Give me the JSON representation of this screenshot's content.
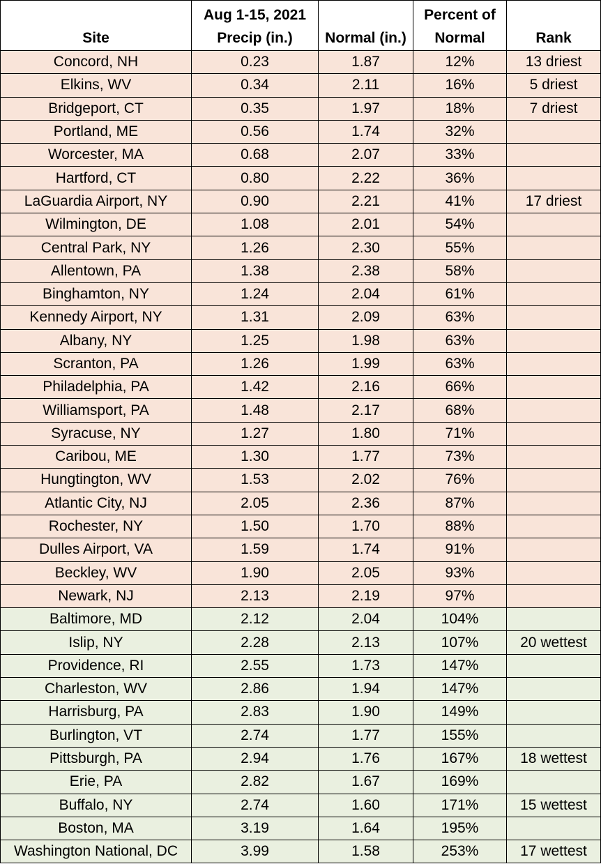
{
  "headers": {
    "site": "Site",
    "precip_line1": "Aug 1-15, 2021",
    "precip_line2": "Precip (in.)",
    "normal": "Normal (in.)",
    "percent_line1": "Percent of",
    "percent_line2": "Normal",
    "rank": "Rank"
  },
  "colors": {
    "below_normal_row": "#f9e4d9",
    "above_normal_row": "#eaf0e0"
  },
  "rows": [
    {
      "site": "Concord, NH",
      "precip": "0.23",
      "normal": "1.87",
      "percent": "12%",
      "rank": "13 driest",
      "category": "below"
    },
    {
      "site": "Elkins, WV",
      "precip": "0.34",
      "normal": "2.11",
      "percent": "16%",
      "rank": "5 driest",
      "category": "below"
    },
    {
      "site": "Bridgeport, CT",
      "precip": "0.35",
      "normal": "1.97",
      "percent": "18%",
      "rank": "7 driest",
      "category": "below"
    },
    {
      "site": "Portland, ME",
      "precip": "0.56",
      "normal": "1.74",
      "percent": "32%",
      "rank": "",
      "category": "below"
    },
    {
      "site": "Worcester, MA",
      "precip": "0.68",
      "normal": "2.07",
      "percent": "33%",
      "rank": "",
      "category": "below"
    },
    {
      "site": "Hartford, CT",
      "precip": "0.80",
      "normal": "2.22",
      "percent": "36%",
      "rank": "",
      "category": "below"
    },
    {
      "site": "LaGuardia Airport, NY",
      "precip": "0.90",
      "normal": "2.21",
      "percent": "41%",
      "rank": "17 driest",
      "category": "below"
    },
    {
      "site": "Wilmington, DE",
      "precip": "1.08",
      "normal": "2.01",
      "percent": "54%",
      "rank": "",
      "category": "below"
    },
    {
      "site": "Central Park, NY",
      "precip": "1.26",
      "normal": "2.30",
      "percent": "55%",
      "rank": "",
      "category": "below"
    },
    {
      "site": "Allentown, PA",
      "precip": "1.38",
      "normal": "2.38",
      "percent": "58%",
      "rank": "",
      "category": "below"
    },
    {
      "site": "Binghamton, NY",
      "precip": "1.24",
      "normal": "2.04",
      "percent": "61%",
      "rank": "",
      "category": "below"
    },
    {
      "site": "Kennedy Airport, NY",
      "precip": "1.31",
      "normal": "2.09",
      "percent": "63%",
      "rank": "",
      "category": "below"
    },
    {
      "site": "Albany, NY",
      "precip": "1.25",
      "normal": "1.98",
      "percent": "63%",
      "rank": "",
      "category": "below"
    },
    {
      "site": "Scranton, PA",
      "precip": "1.26",
      "normal": "1.99",
      "percent": "63%",
      "rank": "",
      "category": "below"
    },
    {
      "site": "Philadelphia, PA",
      "precip": "1.42",
      "normal": "2.16",
      "percent": "66%",
      "rank": "",
      "category": "below"
    },
    {
      "site": "Williamsport, PA",
      "precip": "1.48",
      "normal": "2.17",
      "percent": "68%",
      "rank": "",
      "category": "below"
    },
    {
      "site": "Syracuse, NY",
      "precip": "1.27",
      "normal": "1.80",
      "percent": "71%",
      "rank": "",
      "category": "below"
    },
    {
      "site": "Caribou, ME",
      "precip": "1.30",
      "normal": "1.77",
      "percent": "73%",
      "rank": "",
      "category": "below"
    },
    {
      "site": "Hungtington, WV",
      "precip": "1.53",
      "normal": "2.02",
      "percent": "76%",
      "rank": "",
      "category": "below"
    },
    {
      "site": "Atlantic City, NJ",
      "precip": "2.05",
      "normal": "2.36",
      "percent": "87%",
      "rank": "",
      "category": "below"
    },
    {
      "site": "Rochester, NY",
      "precip": "1.50",
      "normal": "1.70",
      "percent": "88%",
      "rank": "",
      "category": "below"
    },
    {
      "site": "Dulles Airport, VA",
      "precip": "1.59",
      "normal": "1.74",
      "percent": "91%",
      "rank": "",
      "category": "below"
    },
    {
      "site": "Beckley, WV",
      "precip": "1.90",
      "normal": "2.05",
      "percent": "93%",
      "rank": "",
      "category": "below"
    },
    {
      "site": "Newark, NJ",
      "precip": "2.13",
      "normal": "2.19",
      "percent": "97%",
      "rank": "",
      "category": "below"
    },
    {
      "site": "Baltimore, MD",
      "precip": "2.12",
      "normal": "2.04",
      "percent": "104%",
      "rank": "",
      "category": "above"
    },
    {
      "site": "Islip, NY",
      "precip": "2.28",
      "normal": "2.13",
      "percent": "107%",
      "rank": "20 wettest",
      "category": "above"
    },
    {
      "site": "Providence, RI",
      "precip": "2.55",
      "normal": "1.73",
      "percent": "147%",
      "rank": "",
      "category": "above"
    },
    {
      "site": "Charleston, WV",
      "precip": "2.86",
      "normal": "1.94",
      "percent": "147%",
      "rank": "",
      "category": "above"
    },
    {
      "site": "Harrisburg, PA",
      "precip": "2.83",
      "normal": "1.90",
      "percent": "149%",
      "rank": "",
      "category": "above"
    },
    {
      "site": "Burlington, VT",
      "precip": "2.74",
      "normal": "1.77",
      "percent": "155%",
      "rank": "",
      "category": "above"
    },
    {
      "site": "Pittsburgh, PA",
      "precip": "2.94",
      "normal": "1.76",
      "percent": "167%",
      "rank": "18 wettest",
      "category": "above"
    },
    {
      "site": "Erie, PA",
      "precip": "2.82",
      "normal": "1.67",
      "percent": "169%",
      "rank": "",
      "category": "above"
    },
    {
      "site": "Buffalo, NY",
      "precip": "2.74",
      "normal": "1.60",
      "percent": "171%",
      "rank": "15 wettest",
      "category": "above"
    },
    {
      "site": "Boston, MA",
      "precip": "3.19",
      "normal": "1.64",
      "percent": "195%",
      "rank": "",
      "category": "above"
    },
    {
      "site": "Washington National, DC",
      "precip": "3.99",
      "normal": "1.58",
      "percent": "253%",
      "rank": "17 wettest",
      "category": "above"
    }
  ]
}
